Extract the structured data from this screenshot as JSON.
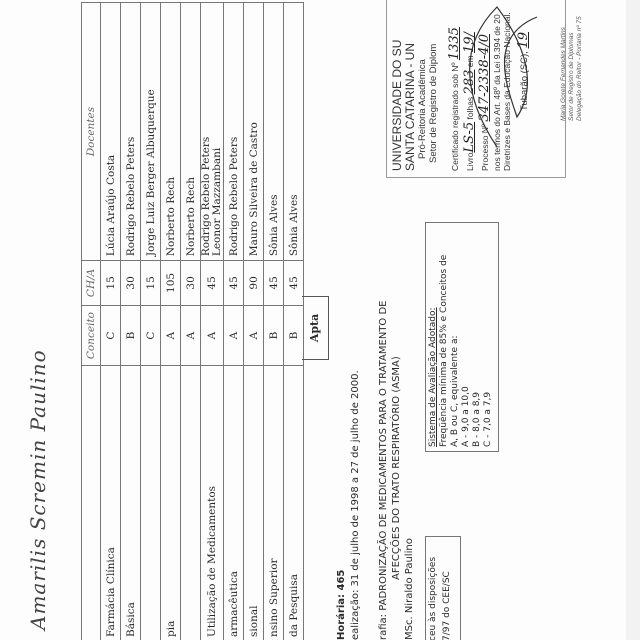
{
  "signature": "Amarilis Scremin Paulino",
  "table": {
    "headers": {
      "concept": "Conceito",
      "hours": "CH/A",
      "teachers": "Docentes"
    },
    "rows": [
      {
        "discipline": "Farmácia Clínica",
        "concept": "C",
        "hours": "15",
        "teachers": "Lúcia Araújo Costa"
      },
      {
        "discipline": "Básica",
        "concept": "B",
        "hours": "30",
        "teachers": "Rodrigo Rebelo Peters"
      },
      {
        "discipline": "",
        "concept": "C",
        "hours": "15",
        "teachers": "Jorge Luiz Berger Albuquerque"
      },
      {
        "discipline": "pia",
        "concept": "A",
        "hours": "105",
        "teachers": "Norberto Rech"
      },
      {
        "discipline": "",
        "concept": "A",
        "hours": "30",
        "teachers": "Norberto Rech"
      },
      {
        "discipline": "Utilização de Medicamentos",
        "concept": "A",
        "hours": "45",
        "teachers": "Rodrigo Rebelo Peters",
        "teachers2": "Leonor Mazzambani"
      },
      {
        "discipline": "armacêutica",
        "concept": "A",
        "hours": "45",
        "teachers": "Rodrigo Rebelo Peters"
      },
      {
        "discipline": "sional",
        "concept": "A",
        "hours": "90",
        "teachers": "Mauro Silveira de Castro"
      },
      {
        "discipline": "nsino Superior",
        "concept": "B",
        "hours": "45",
        "teachers": "Sônia Alves"
      },
      {
        "discipline": "da Pesquisa",
        "concept": "B",
        "hours": "45",
        "teachers": "Sônia Alves"
      }
    ],
    "result": "Apta"
  },
  "info": {
    "hours": "Horária: 465",
    "period": "ealização: 31 de julho de 1998 a 27 de julho de 2000.",
    "monograph_1": "rafia: PADRONIZAÇÃO DE MEDICAMENTOS PARA O TRATAMENTO DE",
    "monograph_2": "AFECÇÕES DO TRATO RESPIRATÓRIO (ASMA)",
    "advisor": "MSc. Niraldo Paulino"
  },
  "legal_box": {
    "line1": "ceu às disposições",
    "line2": "7/97 do CEE/SC"
  },
  "evaluation_box": {
    "title": "Sistema de Avaliação Adotado:",
    "line1": "Freqüência mínima de 85% e Conceitos de",
    "line2": "A, B ou C, equivalente a:",
    "a": "A - 9,0 a 10,0",
    "b": "B - 8,0 a 8,9",
    "c": "C - 7,0 a 7,9"
  },
  "stamp": {
    "line1": "UNIVERSIDADE DO SU",
    "line2": "SANTA CATARINA - UN",
    "line3": "Pró-Reitoria Acadêmica",
    "line4": "Setor de Registro de Diplom",
    "cert": "Certificado registrado sob Nº",
    "cert_no": "1335",
    "book": "Livro",
    "book_no": "LS-5",
    "pages": "folhas",
    "pages_no": "283",
    "on": "em",
    "date": "19/",
    "process": "Processo Nº",
    "process_no": "347-2338-4/0",
    "law1": "nos termos do Art. 48º da Lei 9.394 de 20",
    "law2": "Diretrizes e Bases da Educação Nacional.",
    "place": "Tubarão (SC),",
    "place_date": "19",
    "signer1": "Maria Gorete Fernandes Martins",
    "signer2": "Setor de Registro de Diplomas",
    "signer3": "Delegação do Reitor - Portaria nº 75"
  }
}
